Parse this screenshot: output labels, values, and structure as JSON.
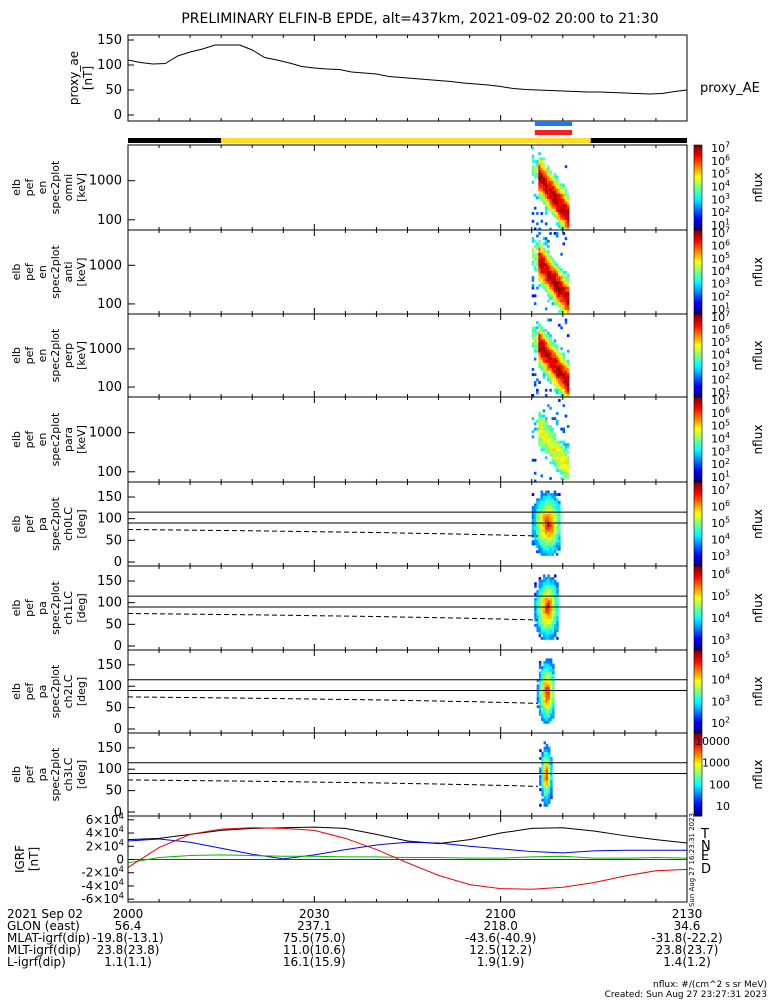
{
  "title": "PRELIMINARY ELFIN-B EPDE, alt=437km, 2021-09-02 20:00 to 21:30",
  "chart_data": [
    {
      "type": "line",
      "panel": "proxy_ae",
      "ylabel": [
        "proxy_ae",
        "[nT]"
      ],
      "yticks": [
        "150",
        "100",
        "50",
        "0"
      ],
      "ylim": [
        0,
        160
      ],
      "legend_label": "proxy_AE",
      "x_minutes": [
        0,
        2,
        4,
        6,
        8,
        10,
        12,
        14,
        16,
        18,
        20,
        22,
        24,
        26,
        28,
        30,
        32,
        34,
        36,
        38,
        40,
        42,
        44,
        46,
        48,
        50,
        52,
        54,
        56,
        58,
        60,
        62,
        64,
        66,
        68,
        70,
        72,
        74,
        76,
        78,
        80,
        82,
        84,
        86,
        88,
        90
      ],
      "values": [
        110,
        105,
        102,
        103,
        118,
        126,
        132,
        140,
        140,
        140,
        130,
        115,
        110,
        104,
        97,
        94,
        92,
        91,
        86,
        84,
        82,
        77,
        75,
        73,
        71,
        69,
        67,
        64,
        62,
        60,
        57,
        53,
        51,
        50,
        49,
        48,
        47,
        46,
        46,
        45,
        44,
        43,
        42,
        43,
        47,
        50
      ]
    },
    {
      "type": "heatmap",
      "panel": "omni",
      "ylabel": [
        "elb",
        "pef",
        "en",
        "spec2plot",
        "omni",
        "[keV]"
      ],
      "yticks": [
        "1000",
        "100"
      ],
      "colorbar_label": "nflux",
      "colorbar_ticks": [
        "10^7",
        "10^6",
        "10^5",
        "10^4",
        "10^3",
        "10^2",
        "10^1"
      ]
    },
    {
      "type": "heatmap",
      "panel": "anti",
      "ylabel": [
        "elb",
        "pef",
        "en",
        "spec2plot",
        "anti",
        "[keV]"
      ],
      "yticks": [
        "1000",
        "100"
      ],
      "colorbar_label": "nflux",
      "colorbar_ticks": [
        "10^7",
        "10^6",
        "10^5",
        "10^4",
        "10^3",
        "10^2",
        "10^1"
      ]
    },
    {
      "type": "heatmap",
      "panel": "perp",
      "ylabel": [
        "elb",
        "pef",
        "en",
        "spec2plot",
        "perp",
        "[keV]"
      ],
      "yticks": [
        "1000",
        "100"
      ],
      "colorbar_label": "nflux",
      "colorbar_ticks": [
        "10^7",
        "10^6",
        "10^5",
        "10^4",
        "10^3",
        "10^2",
        "10^1"
      ]
    },
    {
      "type": "heatmap",
      "panel": "para",
      "ylabel": [
        "elb",
        "pef",
        "en",
        "spec2plot",
        "para",
        "[keV]"
      ],
      "yticks": [
        "1000",
        "100"
      ],
      "colorbar_label": "nflux",
      "colorbar_ticks": [
        "10^7",
        "10^6",
        "10^5",
        "10^4",
        "10^3",
        "10^2",
        "10^1"
      ]
    },
    {
      "type": "heatmap",
      "panel": "ch0LC",
      "ylabel": [
        "elb",
        "pef",
        "pa",
        "spec2plot",
        "ch0LC",
        "[deg]"
      ],
      "yticks": [
        "150",
        "100",
        "50",
        "0"
      ],
      "ylim": [
        0,
        180
      ],
      "colorbar_label": "nflux",
      "colorbar_ticks": [
        "10^7",
        "10^6",
        "10^5",
        "10^4",
        "10^3"
      ]
    },
    {
      "type": "heatmap",
      "panel": "ch1LC",
      "ylabel": [
        "elb",
        "pef",
        "pa",
        "spec2plot",
        "ch1LC",
        "[deg]"
      ],
      "yticks": [
        "150",
        "100",
        "50",
        "0"
      ],
      "ylim": [
        0,
        180
      ],
      "colorbar_label": "nflux",
      "colorbar_ticks": [
        "10^6",
        "10^5",
        "10^4",
        "10^3"
      ]
    },
    {
      "type": "heatmap",
      "panel": "ch2LC",
      "ylabel": [
        "elb",
        "pef",
        "pa",
        "spec2plot",
        "ch2LC",
        "[deg]"
      ],
      "yticks": [
        "150",
        "100",
        "50",
        "0"
      ],
      "ylim": [
        0,
        180
      ],
      "colorbar_label": "nflux",
      "colorbar_ticks": [
        "10^5",
        "10^4",
        "10^3",
        "10^2"
      ]
    },
    {
      "type": "heatmap",
      "panel": "ch3LC",
      "ylabel": [
        "elb",
        "pef",
        "pa",
        "spec2plot",
        "ch3LC",
        "[deg]"
      ],
      "yticks": [
        "150",
        "100",
        "50",
        "0"
      ],
      "ylim": [
        0,
        180
      ],
      "colorbar_label": "nflux",
      "colorbar_ticks": [
        "10000",
        "1000",
        "100",
        "10"
      ]
    },
    {
      "type": "line",
      "panel": "IGRF",
      "ylabel": [
        "IGRF",
        "[nT]"
      ],
      "yticks": [
        "6×10^4",
        "4×10^4",
        "2×10^4",
        "0",
        "-2×10^4",
        "-4×10^4",
        "-6×10^4"
      ],
      "ylim": [
        -65000,
        65000
      ],
      "x_minutes": [
        0,
        5,
        10,
        15,
        20,
        25,
        30,
        35,
        40,
        45,
        50,
        55,
        60,
        65,
        70,
        75,
        80,
        85,
        90
      ],
      "series": [
        {
          "name": "T",
          "color": "#000000",
          "values": [
            30000,
            32000,
            38000,
            44000,
            47000,
            48000,
            49000,
            47000,
            38000,
            28000,
            24000,
            30000,
            40000,
            47000,
            48000,
            43000,
            36000,
            30000,
            25000
          ]
        },
        {
          "name": "N",
          "color": "#0000ee",
          "values": [
            28000,
            31000,
            26000,
            17000,
            8000,
            1000,
            7000,
            15000,
            22000,
            26000,
            25000,
            20000,
            16000,
            12000,
            10000,
            13000,
            14000,
            14000,
            14000
          ]
        },
        {
          "name": "E",
          "color": "#00bb00",
          "values": [
            -5000,
            3000,
            6000,
            7000,
            6000,
            5000,
            5000,
            4000,
            4000,
            3000,
            3000,
            2000,
            2000,
            4000,
            5000,
            2000,
            2000,
            3000,
            2000
          ]
        },
        {
          "name": "D",
          "color": "#ee0000",
          "values": [
            -12000,
            18000,
            38000,
            46000,
            48000,
            47000,
            44000,
            32000,
            15000,
            -5000,
            -24000,
            -38000,
            -44000,
            -45000,
            -42000,
            -35000,
            -25000,
            -17000,
            -15000
          ]
        }
      ],
      "side_note": "Sun Aug 27 16:23:31 2023"
    }
  ],
  "xaxis": {
    "ticks": [
      "2000",
      "2030",
      "2100",
      "2130"
    ],
    "rows": [
      {
        "label": "2021 Sep 02",
        "values": [
          "2000",
          "2030",
          "2100",
          "2130"
        ]
      },
      {
        "label": "GLON (east)",
        "values": [
          "56.4",
          "237.1",
          "218.0",
          "34.6"
        ]
      },
      {
        "label": "MLAT-igrf(dip)",
        "values": [
          "-19.8(-13.1)",
          "75.5(75.0)",
          "-43.6(-40.9)",
          "-31.8(-22.2)"
        ]
      },
      {
        "label": "MLT-igrf(dip)",
        "values": [
          "23.8(23.8)",
          "11.0(10.6)",
          "12.5(12.2)",
          "23.8(23.7)"
        ]
      },
      {
        "label": "L-igrf(dip)",
        "values": [
          "1.1(1.1)",
          "16.1(15.9)",
          "1.9(1.9)",
          "1.4(1.2)"
        ]
      }
    ]
  },
  "footer": {
    "units": "nflux: #/(cm^2 s sr MeV)",
    "created": "Created: Sun Aug 27 23:27:31 2023"
  },
  "colors": {
    "sun_bar": "#ffdd22",
    "shadow_bar": "#000000",
    "science_zone_blue": "#2277ee",
    "science_zone_red": "#ee2222"
  }
}
